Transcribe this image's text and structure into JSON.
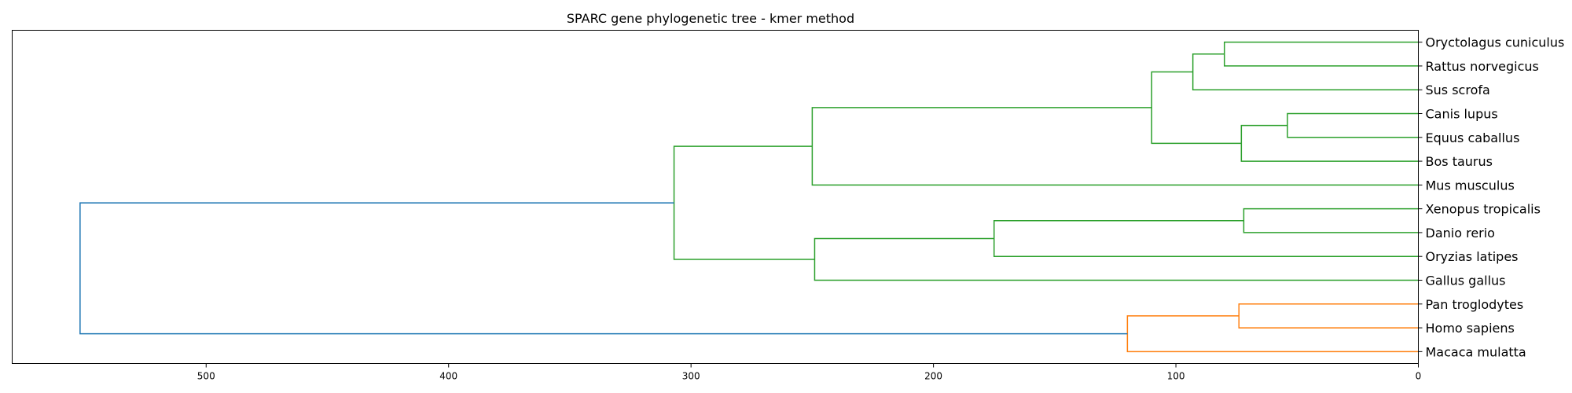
{
  "chart_data": {
    "type": "dendrogram",
    "title": "SPARC gene phylogenetic tree - kmer method",
    "orientation": "left",
    "xlim": [
      580,
      0
    ],
    "x_ticks": [
      500,
      400,
      300,
      200,
      100,
      0
    ],
    "leaves": [
      "Oryctolagus cuniculus",
      "Rattus norvegicus",
      "Sus scrofa",
      "Canis lupus",
      "Equus caballus",
      "Bos taurus",
      "Mus musculus",
      "Xenopus tropicalis",
      "Danio rerio",
      "Oryzias latipes",
      "Gallus gallus",
      "Pan troglodytes",
      "Homo sapiens",
      "Macaca mulatta"
    ],
    "colors": {
      "cluster_1": "#2ca02c",
      "cluster_2": "#ff7f0e",
      "root": "#1f77b4",
      "axes": "#000000"
    },
    "merges": [
      {
        "id": "n1",
        "children": [
          "Oryctolagus cuniculus",
          "Rattus norvegicus"
        ],
        "height": 80,
        "color": "#2ca02c"
      },
      {
        "id": "n2",
        "children": [
          "n1",
          "Sus scrofa"
        ],
        "height": 93,
        "color": "#2ca02c"
      },
      {
        "id": "n3",
        "children": [
          "Canis lupus",
          "Equus caballus"
        ],
        "height": 54,
        "color": "#2ca02c"
      },
      {
        "id": "n4",
        "children": [
          "n3",
          "Bos taurus"
        ],
        "height": 73,
        "color": "#2ca02c"
      },
      {
        "id": "n5",
        "children": [
          "n2",
          "n4"
        ],
        "height": 110,
        "color": "#2ca02c"
      },
      {
        "id": "n6",
        "children": [
          "n5",
          "Mus musculus"
        ],
        "height": 250,
        "color": "#2ca02c"
      },
      {
        "id": "n7",
        "children": [
          "Xenopus tropicalis",
          "Danio rerio"
        ],
        "height": 72,
        "color": "#2ca02c"
      },
      {
        "id": "n8",
        "children": [
          "n7",
          "Oryzias latipes"
        ],
        "height": 175,
        "color": "#2ca02c"
      },
      {
        "id": "n9",
        "children": [
          "n8",
          "Gallus gallus"
        ],
        "height": 249,
        "color": "#2ca02c"
      },
      {
        "id": "n10",
        "children": [
          "n6",
          "n9"
        ],
        "height": 307,
        "color": "#2ca02c"
      },
      {
        "id": "n11",
        "children": [
          "Pan troglodytes",
          "Homo sapiens"
        ],
        "height": 74,
        "color": "#ff7f0e"
      },
      {
        "id": "n12",
        "children": [
          "n11",
          "Macaca mulatta"
        ],
        "height": 120,
        "color": "#ff7f0e"
      },
      {
        "id": "n13",
        "children": [
          "n10",
          "n12"
        ],
        "height": 552,
        "color": "#1f77b4"
      }
    ]
  }
}
